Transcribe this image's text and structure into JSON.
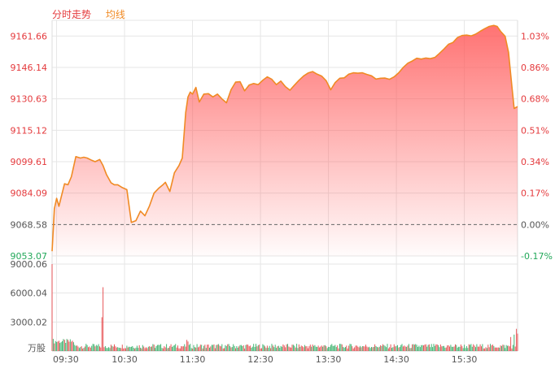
{
  "legend": {
    "minute": "分时走势",
    "avg": "均线"
  },
  "colors": {
    "up": "#e4393c",
    "down": "#22a85a",
    "line": "#f08a24",
    "grid": "#e6e6e6",
    "base": "#666666",
    "axis_text": "#555555"
  },
  "chart_data": [
    {
      "type": "area",
      "base_value": 9068.58,
      "y_ticks_left": [
        "9161.66",
        "9146.14",
        "9130.63",
        "9115.12",
        "9099.61",
        "9084.09",
        "9068.58",
        "9053.07"
      ],
      "y_ticks_right": [
        "1.03%",
        "0.86%",
        "0.68%",
        "0.51%",
        "0.34%",
        "0.17%",
        "0.00%",
        "-0.17%"
      ],
      "x_ticks": [
        "09:30",
        "10:30",
        "11:30",
        "12:30",
        "13:30",
        "14:30",
        "15:30"
      ],
      "ylim": [
        9053.07,
        9169.42
      ],
      "series": [
        {
          "t": [
            0,
            2,
            4,
            6,
            8,
            11,
            14,
            17,
            21,
            25,
            28,
            31,
            35,
            38,
            42,
            45,
            48,
            52,
            55,
            58,
            62,
            66,
            70,
            74,
            78,
            82,
            86,
            90,
            94,
            98,
            100,
            104,
            108,
            112,
            115,
            118,
            120,
            122,
            124,
            127,
            130,
            134,
            138,
            142,
            146,
            150,
            154,
            158,
            162,
            166,
            170,
            174,
            178,
            182,
            186,
            190,
            194,
            198,
            202,
            206,
            210,
            214,
            218,
            222,
            226,
            230,
            234,
            238,
            242,
            246,
            250,
            254,
            258,
            262,
            266,
            270,
            274,
            278,
            282,
            286,
            290,
            294,
            298,
            302,
            306,
            310,
            314,
            318,
            322,
            326,
            330,
            334,
            338,
            342,
            346,
            350,
            354,
            358,
            362,
            366,
            370,
            374,
            378,
            382,
            386,
            390,
            393,
            396,
            400,
            403,
            406,
            408,
            411
          ],
          "values": [
            9055.4,
            9076.4,
            9081.5,
            9077.6,
            9082.0,
            9088.7,
            9088.2,
            9092.2,
            9102.1,
            9101.4,
            9101.8,
            9101.4,
            9100.3,
            9099.6,
            9100.7,
            9097.7,
            9093.3,
            9089.2,
            9088.2,
            9088.2,
            9086.8,
            9085.8,
            9069.6,
            9070.5,
            9075.2,
            9072.9,
            9077.8,
            9084.1,
            9086.4,
            9088.3,
            9089.4,
            9084.9,
            9094.1,
            9097.7,
            9101.4,
            9123.9,
            9131.6,
            9134.0,
            9133.0,
            9136.3,
            9129.1,
            9133.0,
            9133.2,
            9131.6,
            9133.0,
            9130.6,
            9128.7,
            9135.1,
            9138.9,
            9139.1,
            9134.6,
            9137.5,
            9138.2,
            9137.7,
            9139.8,
            9141.5,
            9140.3,
            9137.7,
            9139.4,
            9136.7,
            9134.9,
            9137.4,
            9139.8,
            9141.9,
            9143.4,
            9144.1,
            9142.8,
            9141.9,
            9139.6,
            9135.1,
            9138.7,
            9140.8,
            9141.0,
            9142.8,
            9143.5,
            9143.3,
            9143.5,
            9142.7,
            9142.0,
            9140.4,
            9140.8,
            9140.9,
            9140.3,
            9141.5,
            9143.5,
            9146.1,
            9148.2,
            9149.3,
            9150.7,
            9150.3,
            9150.8,
            9150.5,
            9151.1,
            9153.1,
            9155.2,
            9157.6,
            9158.5,
            9160.9,
            9161.9,
            9162.1,
            9161.7,
            9162.6,
            9164.0,
            9165.3,
            9166.4,
            9166.9,
            9166.4,
            9164.0,
            9161.5,
            9153.6,
            9136.9,
            9125.9,
            9126.8
          ]
        }
      ],
      "volume": {
        "y_ticks": [
          "9000.06",
          "6000.04",
          "3000.02"
        ],
        "unit": "万股",
        "ylim": [
          0,
          9000.06
        ],
        "spikes": [
          {
            "t": 0,
            "value": 9000.06,
            "dir": "up"
          },
          {
            "t": 1,
            "value": 1250,
            "dir": "down"
          },
          {
            "t": 44,
            "value": 3500,
            "dir": "up"
          },
          {
            "t": 45,
            "value": 6600,
            "dir": "up"
          },
          {
            "t": 119,
            "value": 1150,
            "dir": "up"
          },
          {
            "t": 120,
            "value": 980,
            "dir": "up"
          },
          {
            "t": 405,
            "value": 1450,
            "dir": "up"
          },
          {
            "t": 408,
            "value": 1700,
            "dir": "down"
          },
          {
            "t": 410,
            "value": 2300,
            "dir": "up"
          },
          {
            "t": 411,
            "value": 1800,
            "dir": "up"
          }
        ]
      }
    }
  ]
}
